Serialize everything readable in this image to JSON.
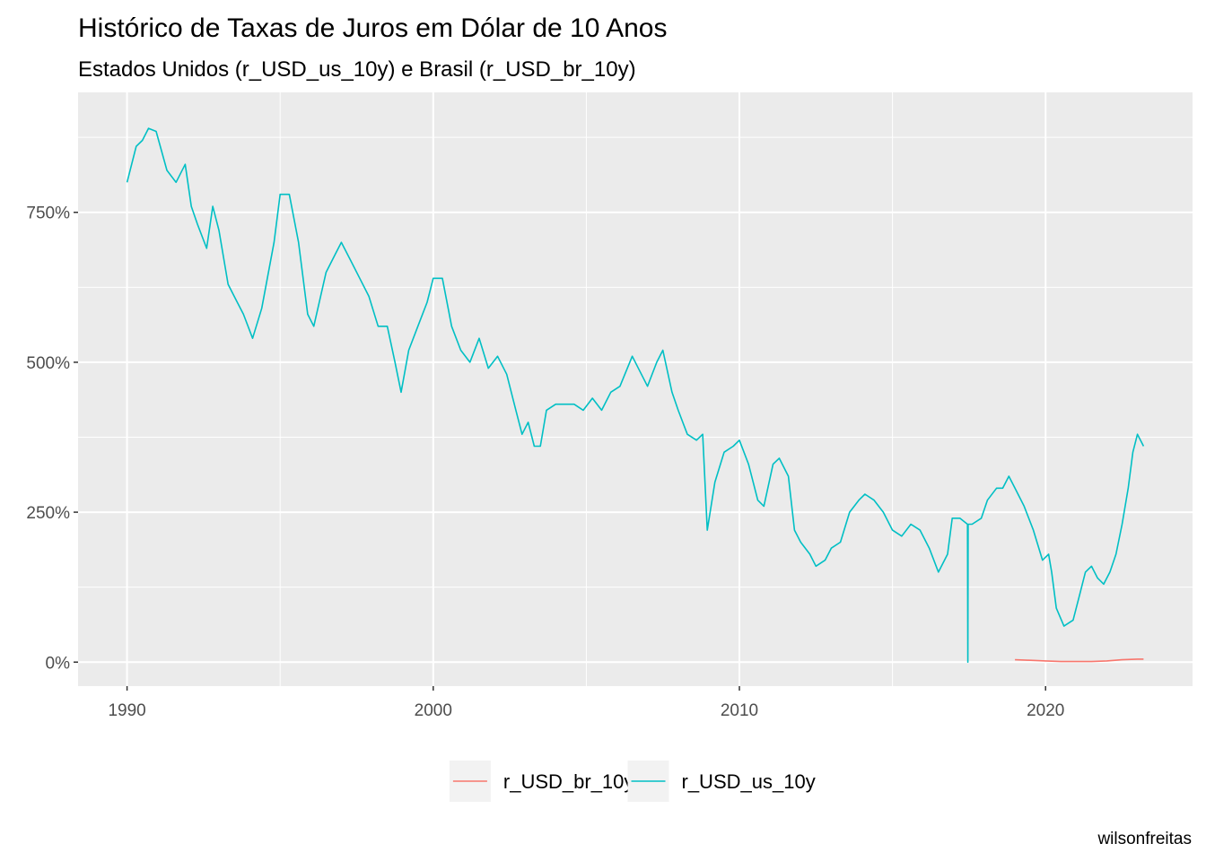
{
  "chart_data": {
    "type": "line",
    "title": "Histórico de Taxas de Juros em Dólar de 10 Anos",
    "subtitle": "Estados Unidos (r_USD_us_10y) e Brasil (r_USD_br_10y)",
    "caption": "wilsonfreitas",
    "xlabel": "",
    "ylabel": "",
    "xlim": [
      1988.4,
      2024.8
    ],
    "ylim": [
      -40,
      950
    ],
    "x_ticks": [
      1990,
      2000,
      2010,
      2020
    ],
    "x_tick_labels": [
      "1990",
      "2000",
      "2010",
      "2020"
    ],
    "x_minor_ticks": [
      1995,
      2005,
      2015
    ],
    "y_ticks": [
      0,
      250,
      500,
      750
    ],
    "y_tick_labels": [
      "0%",
      "250%",
      "500%",
      "750%"
    ],
    "y_minor_ticks": [
      125,
      375,
      625,
      875
    ],
    "grid": true,
    "legend_position": "bottom",
    "series": [
      {
        "name": "r_USD_br_10y",
        "color": "#F8766D",
        "x": [
          2019.0,
          2019.5,
          2020.0,
          2020.5,
          2021.0,
          2021.5,
          2022.0,
          2022.5,
          2023.0,
          2023.2
        ],
        "y": [
          4,
          3,
          2,
          1,
          1,
          1,
          2,
          4,
          5,
          5
        ]
      },
      {
        "name": "r_USD_us_10y",
        "color": "#00BFC4",
        "x": [
          1990.0,
          1990.3,
          1990.5,
          1990.7,
          1990.95,
          1991.3,
          1991.6,
          1991.9,
          1992.1,
          1992.3,
          1992.6,
          1992.8,
          1993.0,
          1993.3,
          1993.6,
          1993.8,
          1994.1,
          1994.4,
          1994.8,
          1995.0,
          1995.3,
          1995.6,
          1995.9,
          1996.1,
          1996.5,
          1996.8,
          1997.0,
          1997.3,
          1997.6,
          1997.9,
          1998.2,
          1998.5,
          1998.75,
          1998.95,
          1999.2,
          1999.5,
          1999.8,
          2000.0,
          2000.3,
          2000.6,
          2000.9,
          2001.2,
          2001.5,
          2001.8,
          2002.1,
          2002.4,
          2002.7,
          2002.9,
          2003.1,
          2003.3,
          2003.5,
          2003.7,
          2004.0,
          2004.3,
          2004.6,
          2004.9,
          2005.2,
          2005.5,
          2005.8,
          2006.1,
          2006.5,
          2006.8,
          2007.0,
          2007.3,
          2007.5,
          2007.8,
          2008.0,
          2008.3,
          2008.6,
          2008.8,
          2008.95,
          2009.2,
          2009.5,
          2009.8,
          2010.0,
          2010.3,
          2010.6,
          2010.8,
          2011.1,
          2011.3,
          2011.6,
          2011.8,
          2012.0,
          2012.3,
          2012.5,
          2012.8,
          2013.0,
          2013.3,
          2013.6,
          2013.9,
          2014.1,
          2014.4,
          2014.7,
          2015.0,
          2015.3,
          2015.6,
          2015.9,
          2016.2,
          2016.5,
          2016.8,
          2016.95,
          2017.2,
          2017.45,
          2017.46,
          2017.47,
          2017.6,
          2017.9,
          2018.1,
          2018.4,
          2018.6,
          2018.8,
          2019.0,
          2019.3,
          2019.6,
          2019.9,
          2020.1,
          2020.2,
          2020.35,
          2020.6,
          2020.9,
          2021.1,
          2021.3,
          2021.5,
          2021.7,
          2021.9,
          2022.1,
          2022.3,
          2022.5,
          2022.7,
          2022.85,
          2023.0,
          2023.2
        ],
        "y": [
          800,
          860,
          870,
          890,
          885,
          820,
          800,
          830,
          760,
          730,
          690,
          760,
          720,
          630,
          600,
          580,
          540,
          590,
          700,
          780,
          780,
          700,
          580,
          560,
          650,
          680,
          700,
          670,
          640,
          610,
          560,
          560,
          500,
          450,
          520,
          560,
          600,
          640,
          640,
          560,
          520,
          500,
          540,
          490,
          510,
          480,
          420,
          380,
          400,
          360,
          360,
          420,
          430,
          430,
          430,
          420,
          440,
          420,
          450,
          460,
          510,
          480,
          460,
          500,
          520,
          450,
          420,
          380,
          370,
          380,
          220,
          300,
          350,
          360,
          370,
          330,
          270,
          260,
          330,
          340,
          310,
          220,
          200,
          180,
          160,
          170,
          190,
          200,
          250,
          270,
          280,
          270,
          250,
          220,
          210,
          230,
          220,
          190,
          150,
          180,
          240,
          240,
          230,
          0,
          230,
          230,
          240,
          270,
          290,
          290,
          310,
          290,
          260,
          220,
          170,
          180,
          150,
          90,
          60,
          70,
          110,
          150,
          160,
          140,
          130,
          150,
          180,
          230,
          290,
          350,
          380,
          360
        ]
      }
    ]
  }
}
